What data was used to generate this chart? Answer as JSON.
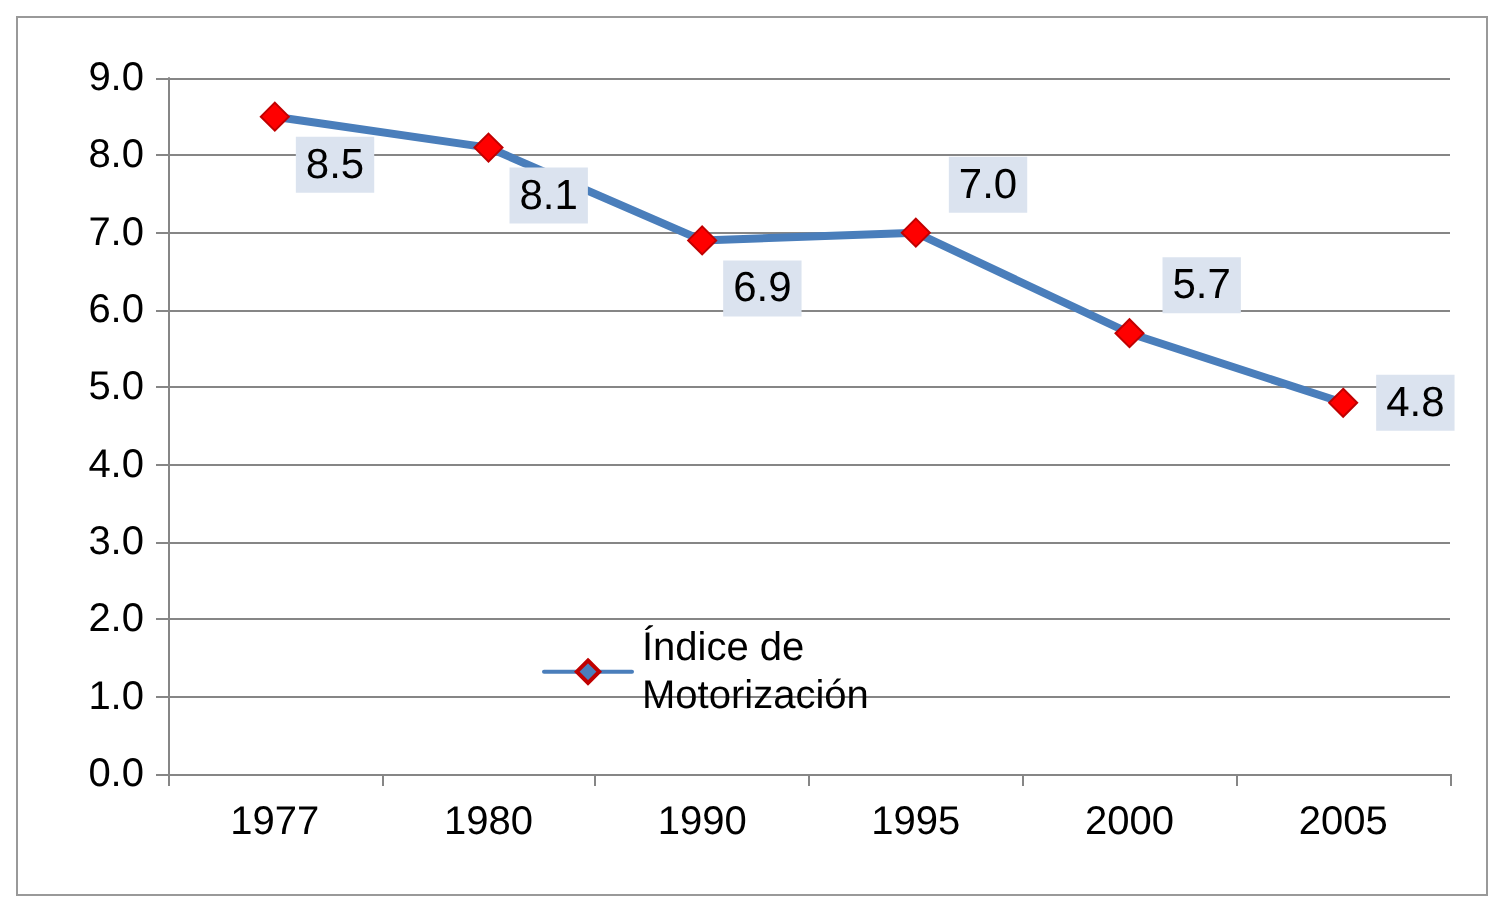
{
  "chart_data": {
    "type": "line",
    "categories": [
      "1977",
      "1980",
      "1990",
      "1995",
      "2000",
      "2005"
    ],
    "series": [
      {
        "name": "Índice de Motorización",
        "color": "#4a7ebb",
        "colors": [
          "#ff0000",
          "#ff0000",
          "#ff0000",
          "#ff0000",
          "#ff0000",
          "#ff0000"
        ],
        "values": [
          8.5,
          8.1,
          6.9,
          7.0,
          5.7,
          4.8
        ],
        "value_labels": [
          "8.5",
          "8.1",
          "6.9",
          "7.0",
          "5.7",
          "4.8"
        ]
      }
    ],
    "ylim": [
      0,
      9
    ],
    "yticks": [
      "0.0",
      "1.0",
      "2.0",
      "3.0",
      "4.0",
      "5.0",
      "6.0",
      "7.0",
      "8.0",
      "9.0"
    ],
    "grid": "y",
    "legend": "bottom",
    "marker": "diamond",
    "line_style": "solid"
  }
}
